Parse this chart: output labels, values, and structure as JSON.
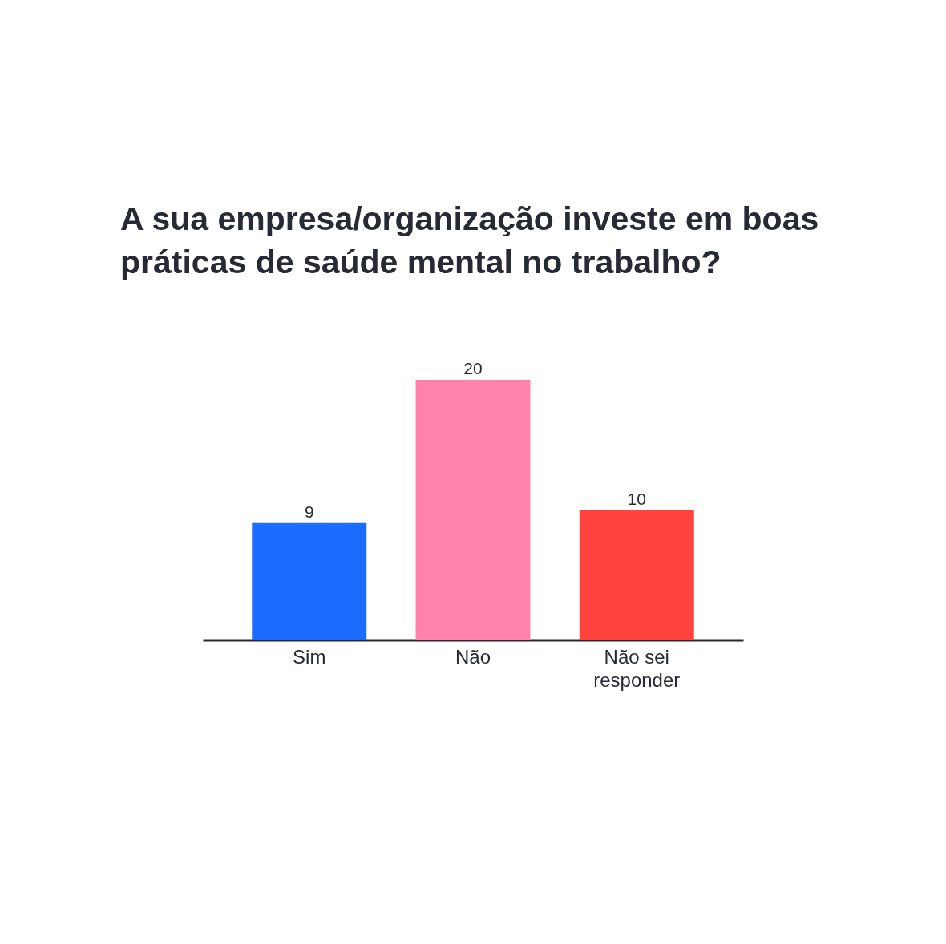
{
  "chart_data": {
    "type": "bar",
    "title": "A sua empresa/organização investe em boas práticas de saúde mental no trabalho?",
    "categories": [
      "Sim",
      "Não",
      "Não sei responder"
    ],
    "values": [
      9,
      20,
      10
    ],
    "colors": [
      "#1e6bff",
      "#ff82ab",
      "#ff423d"
    ],
    "data_labels": true
  }
}
